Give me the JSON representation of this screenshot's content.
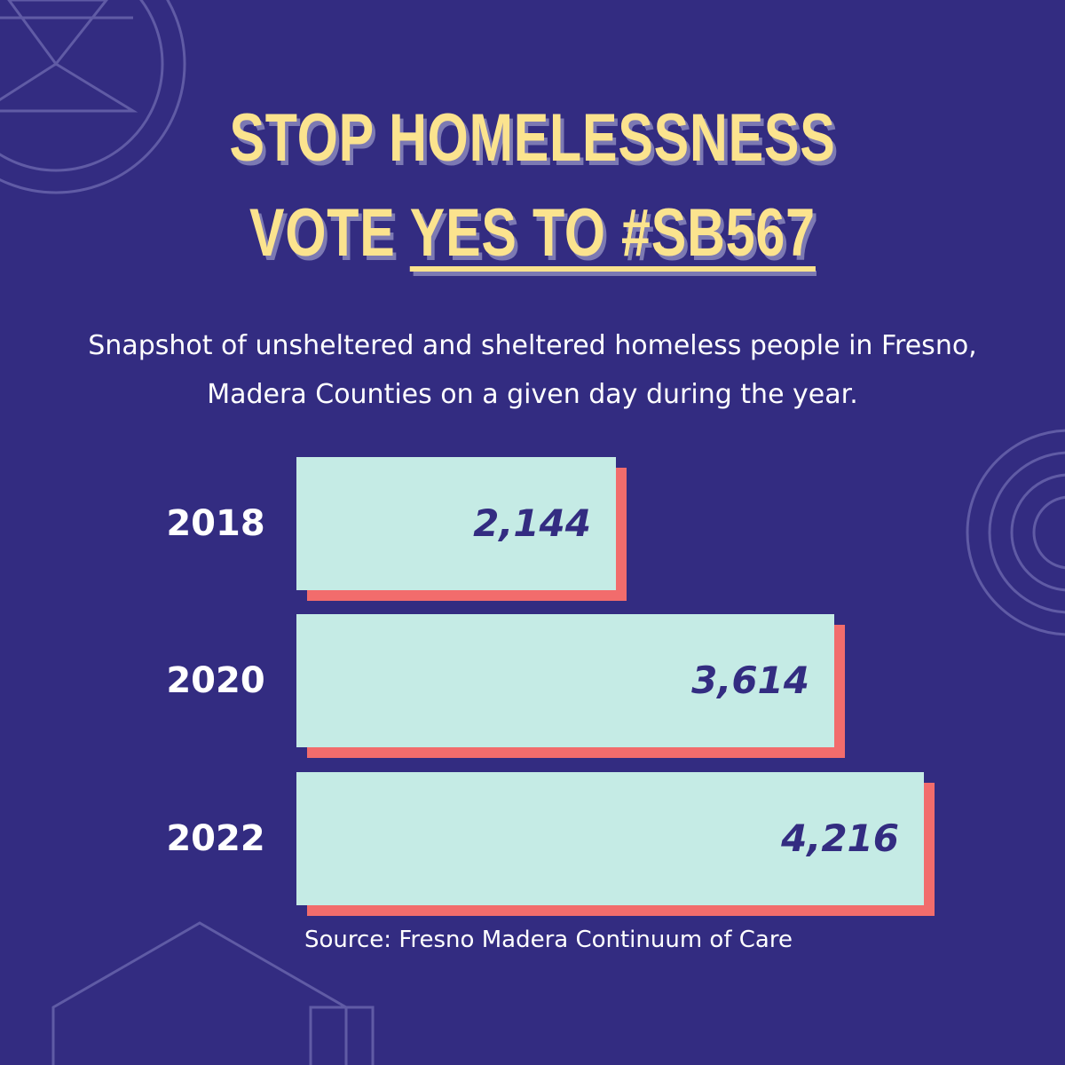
{
  "headline": {
    "line1": "STOP HOMELESSNESS",
    "line2_prefix": "VOTE ",
    "line2_underlined": "YES TO #SB567"
  },
  "subtitle": "Snapshot of unsheltered and sheltered homeless people in Fresno, Madera Counties on a given day during the year.",
  "source": "Source: Fresno Madera Continuum of Care",
  "colors": {
    "background": "#332c81",
    "headline": "#fbe38e",
    "bar": "#c5ebe5",
    "bar_shadow": "#f26c6c",
    "value_text": "#332c81"
  },
  "chart_data": {
    "type": "bar",
    "orientation": "horizontal",
    "categories": [
      "2018",
      "2020",
      "2022"
    ],
    "values": [
      2144,
      3614,
      4216
    ],
    "value_labels": [
      "2,144",
      "3,614",
      "4,216"
    ],
    "xlim": [
      0,
      4216
    ]
  }
}
